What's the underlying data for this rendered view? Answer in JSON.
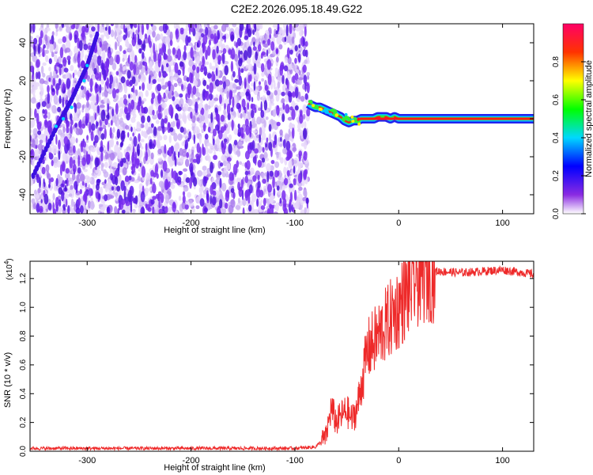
{
  "title": "C2E2.2026.095.18.49.G22",
  "chart_data": [
    {
      "type": "heatmap",
      "name": "spectrogram",
      "xlabel": "Height of straight line (km)",
      "ylabel": "Frequency (Hz)",
      "xlim": [
        -355,
        130
      ],
      "ylim": [
        -50,
        50
      ],
      "xticks": [
        -300,
        -200,
        -100,
        0,
        100
      ],
      "yticks": [
        -40,
        -20,
        0,
        20,
        40
      ],
      "noise_region_x": [
        -355,
        -87
      ],
      "signal_trace": {
        "x": [
          -87,
          -84,
          -80,
          -76,
          -72,
          -68,
          -64,
          -60,
          -56,
          -52,
          -48,
          -44,
          -40,
          -36,
          -32,
          -28,
          -24,
          -20,
          -16,
          -12,
          -8,
          -4,
          0,
          10,
          30,
          60,
          100,
          130
        ],
        "y": [
          8,
          7,
          6,
          6,
          5,
          4,
          3,
          2,
          1,
          -1,
          -2,
          -1,
          -1,
          0,
          0,
          0,
          0,
          1,
          1,
          1,
          0,
          1,
          0,
          0,
          0,
          0,
          0,
          0
        ]
      },
      "diagonal_feature": {
        "x": [
          -352,
          -330,
          -315,
          -300,
          -290
        ],
        "y": [
          -30,
          -5,
          10,
          28,
          45
        ]
      },
      "colorbar": {
        "label": "Normalized spectral amplitude",
        "ticks": [
          "0.0",
          "0.2",
          "0.4",
          "0.6",
          "0.8"
        ],
        "range": [
          0,
          1
        ]
      }
    },
    {
      "type": "line",
      "name": "snr",
      "xlabel": "Height of straight line (km)",
      "ylabel": "SNR (10 * v/v)",
      "yscale_label": "(x10",
      "yscale_exponent": "4",
      "xlim": [
        -355,
        130
      ],
      "ylim": [
        0,
        1.32
      ],
      "xticks": [
        -300,
        -200,
        -100,
        0,
        100
      ],
      "yticks": [
        "0.0",
        "0.2",
        "0.4",
        "0.6",
        "0.8",
        "1.0",
        "1.2"
      ],
      "color": "#ee2a2a",
      "series": {
        "x": [
          -355,
          -100,
          -80,
          -70,
          -65,
          -60,
          -55,
          -50,
          -45,
          -40,
          -35,
          -30,
          -25,
          -20,
          -15,
          -10,
          -5,
          0,
          10,
          20,
          30,
          40,
          60,
          80,
          100,
          110,
          120,
          130
        ],
        "y": [
          0.02,
          0.02,
          0.03,
          0.1,
          0.3,
          0.2,
          0.25,
          0.28,
          0.22,
          0.3,
          0.5,
          0.7,
          0.75,
          0.8,
          0.85,
          0.9,
          0.95,
          1.0,
          1.12,
          1.22,
          1.25,
          1.25,
          1.24,
          1.25,
          1.26,
          1.25,
          1.24,
          1.23
        ]
      }
    }
  ]
}
